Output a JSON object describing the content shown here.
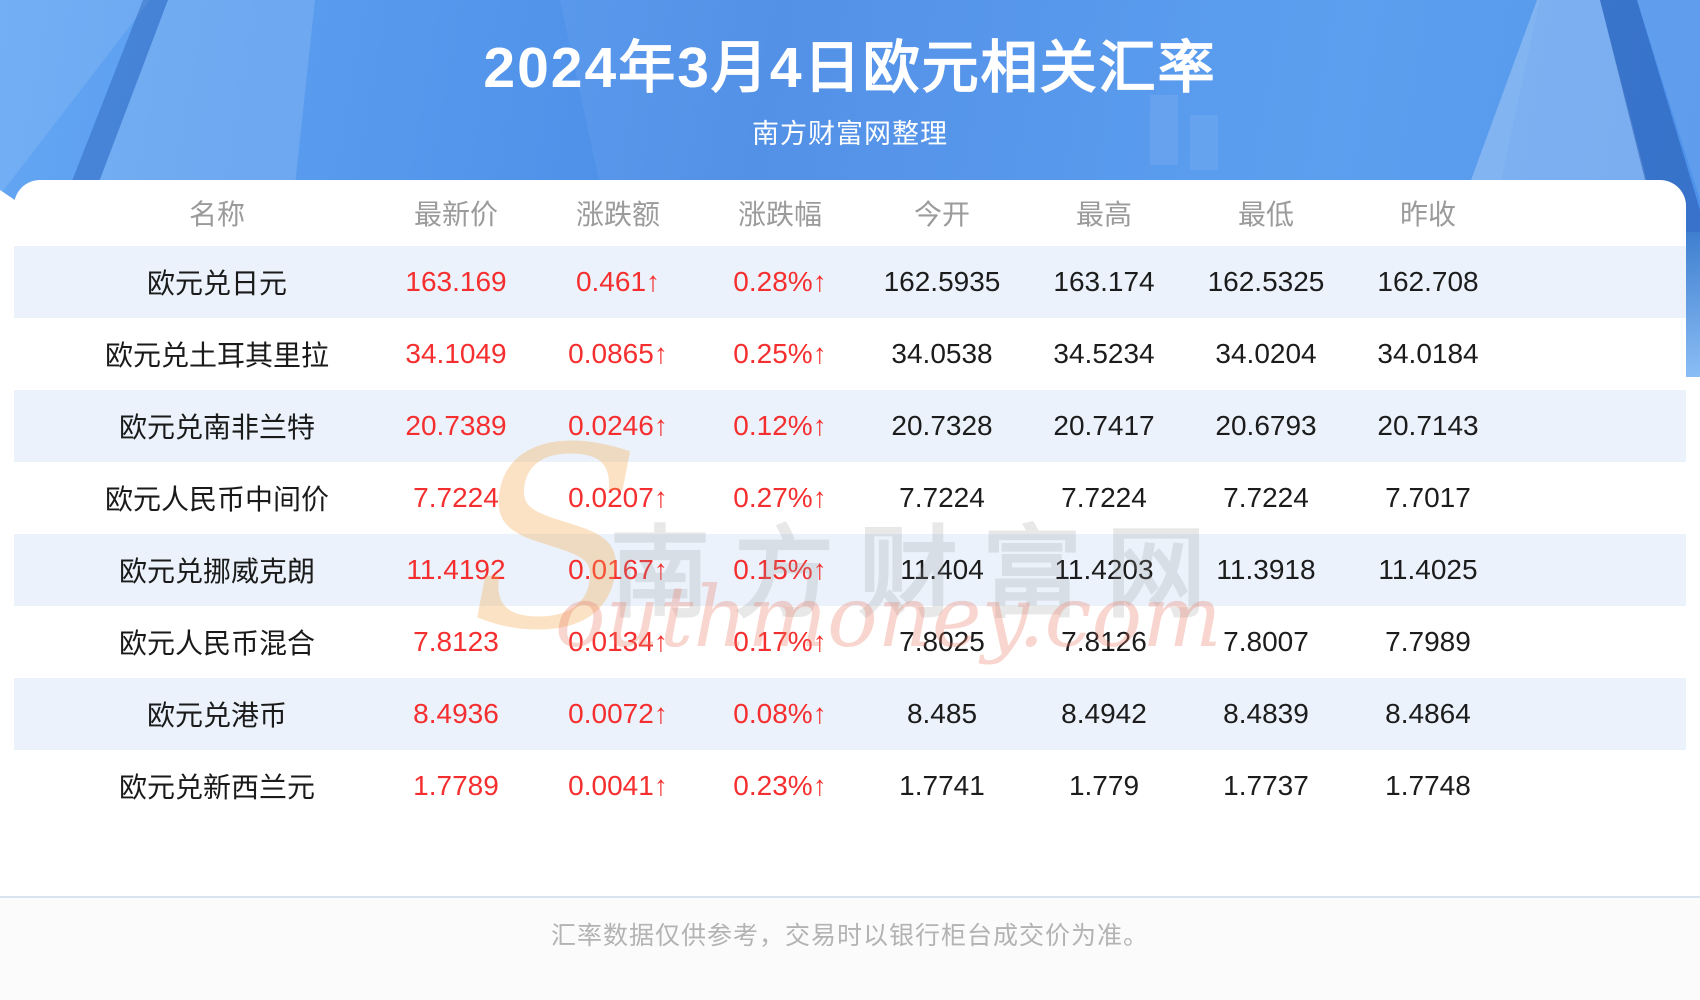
{
  "page": {
    "title": "2024年3月4日欧元相关汇率",
    "subtitle": "南方财富网整理",
    "footer_note": "汇率数据仅供参考，交易时以银行柜台成交价为准。"
  },
  "watermark": {
    "initial": "S",
    "cn": "南方财富网",
    "en": "outhmoney.com"
  },
  "colors": {
    "hero_blue": "#4a8ce6",
    "accent_red": "#f52f2f",
    "row_alt_blue": "#ebf2fb",
    "header_text_gray": "#9b9b9b",
    "footer_text_gray": "#b3b3b3",
    "value_text_black": "#1c1c1c"
  },
  "chart_data": {
    "type": "table",
    "title": "2024年3月4日欧元相关汇率",
    "subtitle": "南方财富网整理",
    "footnote": "汇率数据仅供参考，交易时以银行柜台成交价为准。",
    "columns": [
      "名称",
      "最新价",
      "涨跌额",
      "涨跌幅",
      "今开",
      "最高",
      "最低",
      "昨收"
    ],
    "rows": [
      [
        "欧元兑日元",
        "163.169",
        "0.461↑",
        "0.28%↑",
        "162.5935",
        "163.174",
        "162.5325",
        "162.708"
      ],
      [
        "欧元兑土耳其里拉",
        "34.1049",
        "0.0865↑",
        "0.25%↑",
        "34.0538",
        "34.5234",
        "34.0204",
        "34.0184"
      ],
      [
        "欧元兑南非兰特",
        "20.7389",
        "0.0246↑",
        "0.12%↑",
        "20.7328",
        "20.7417",
        "20.6793",
        "20.7143"
      ],
      [
        "欧元人民币中间价",
        "7.7224",
        "0.0207↑",
        "0.27%↑",
        "7.7224",
        "7.7224",
        "7.7224",
        "7.7017"
      ],
      [
        "欧元兑挪威克朗",
        "11.4192",
        "0.0167↑",
        "0.15%↑",
        "11.404",
        "11.4203",
        "11.3918",
        "11.4025"
      ],
      [
        "欧元人民币混合",
        "7.8123",
        "0.0134↑",
        "0.17%↑",
        "7.8025",
        "7.8126",
        "7.8007",
        "7.7989"
      ],
      [
        "欧元兑港币",
        "8.4936",
        "0.0072↑",
        "0.08%↑",
        "8.485",
        "8.4942",
        "8.4839",
        "8.4864"
      ],
      [
        "欧元兑新西兰元",
        "1.7789",
        "0.0041↑",
        "0.23%↑",
        "1.7741",
        "1.779",
        "1.7737",
        "1.7748"
      ]
    ]
  }
}
